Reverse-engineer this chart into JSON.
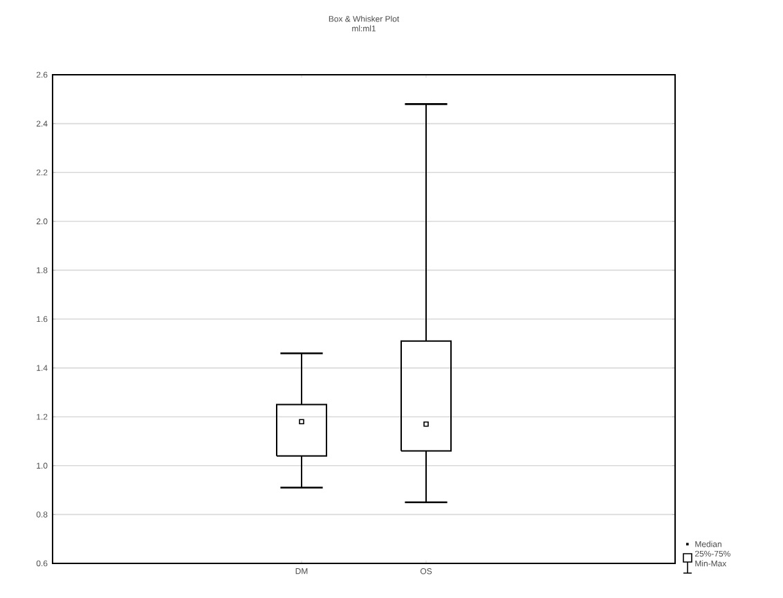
{
  "chart_data": {
    "type": "box",
    "title": "Box & Whisker Plot",
    "subtitle": "ml:ml1",
    "categories": [
      "DM",
      "OS"
    ],
    "boxes": [
      {
        "low": 0.91,
        "q1": 1.04,
        "median": 1.18,
        "q3": 1.25,
        "high": 1.46
      },
      {
        "low": 0.85,
        "q1": 1.06,
        "median": 1.17,
        "q3": 1.51,
        "high": 2.48
      }
    ],
    "color": "#000000",
    "ylim": [
      0.6,
      2.6
    ],
    "yticks": [
      {
        "value": 0.6,
        "label": "0.6"
      },
      {
        "value": 0.8,
        "label": "0.8"
      },
      {
        "value": 1.0,
        "label": "1.0"
      },
      {
        "value": 1.2,
        "label": "1.2"
      },
      {
        "value": 1.4,
        "label": "1.4"
      },
      {
        "value": 1.6,
        "label": "1.6"
      },
      {
        "value": 1.8,
        "label": "1.8"
      },
      {
        "value": 2.0,
        "label": "2.0"
      },
      {
        "value": 2.2,
        "label": "2.2"
      },
      {
        "value": 2.4,
        "label": "2.4"
      },
      {
        "value": 2.6,
        "label": "2.6"
      }
    ],
    "grid": "y",
    "marker": "square",
    "annotations": [
      "Median",
      "25%-75%",
      "Min-Max"
    ]
  }
}
